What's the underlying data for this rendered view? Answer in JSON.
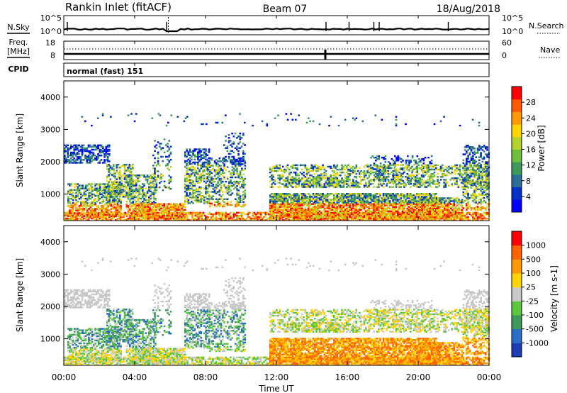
{
  "header": {
    "station": "Rankin Inlet (fitACF)",
    "beam": "Beam 07",
    "date": "18/Aug/2018"
  },
  "noise_panel": {
    "left_label": "N.Sky",
    "right_label": "N.Search",
    "left_ticks": [
      "10^5",
      "10^0"
    ],
    "right_ticks": [
      "10^5",
      "10^0"
    ]
  },
  "freq_panel": {
    "left_label_1": "Freq.",
    "left_label_2": "[MHz]",
    "right_label": "Nave",
    "left_ticks": [
      "18",
      "8"
    ],
    "right_ticks": [
      "60",
      "0"
    ]
  },
  "cpid_panel": {
    "label": "CPID",
    "text": "normal (fast) 151"
  },
  "chart_data": [
    {
      "type": "heatmap",
      "quantity": "Power",
      "xlabel": "Time UT",
      "ylabel": "Slant Range [km]",
      "ylim": [
        180,
        4500
      ],
      "yticks": [
        1000,
        2000,
        3000,
        4000
      ],
      "xlim": [
        0,
        24
      ],
      "colorbar": {
        "label": "Power [dB]",
        "range": [
          0,
          32
        ],
        "ticks": [
          "4",
          "8",
          "12",
          "16",
          "20",
          "24",
          "28"
        ],
        "colors": [
          "#0000ff",
          "#0032c8",
          "#2a6e96",
          "#3c9b5a",
          "#6fbf3c",
          "#b4d22a",
          "#ffd200",
          "#ff9a00",
          "#ff5a00",
          "#ff0000"
        ]
      }
    },
    {
      "type": "heatmap",
      "quantity": "Velocity",
      "xlabel": "Time UT",
      "ylabel": "Slant Range [km]",
      "ylim": [
        180,
        4500
      ],
      "yticks": [
        1000,
        2000,
        3000,
        4000
      ],
      "xlim": [
        0,
        24
      ],
      "xticks": [
        "00:00",
        "04:00",
        "08:00",
        "12:00",
        "16:00",
        "20:00",
        "00:00"
      ],
      "colorbar": {
        "label": "Velocity [m s-1]",
        "ticks": [
          "1000",
          "500",
          "100",
          "25",
          "-25",
          "-100",
          "-500",
          "-1000"
        ],
        "colors": [
          "#1e3cb4",
          "#2a6ec8",
          "#3c9b5a",
          "#5ac83c",
          "#c8c8c8",
          "#ffd200",
          "#ff9a00",
          "#ff6400",
          "#ff0000"
        ]
      }
    }
  ]
}
